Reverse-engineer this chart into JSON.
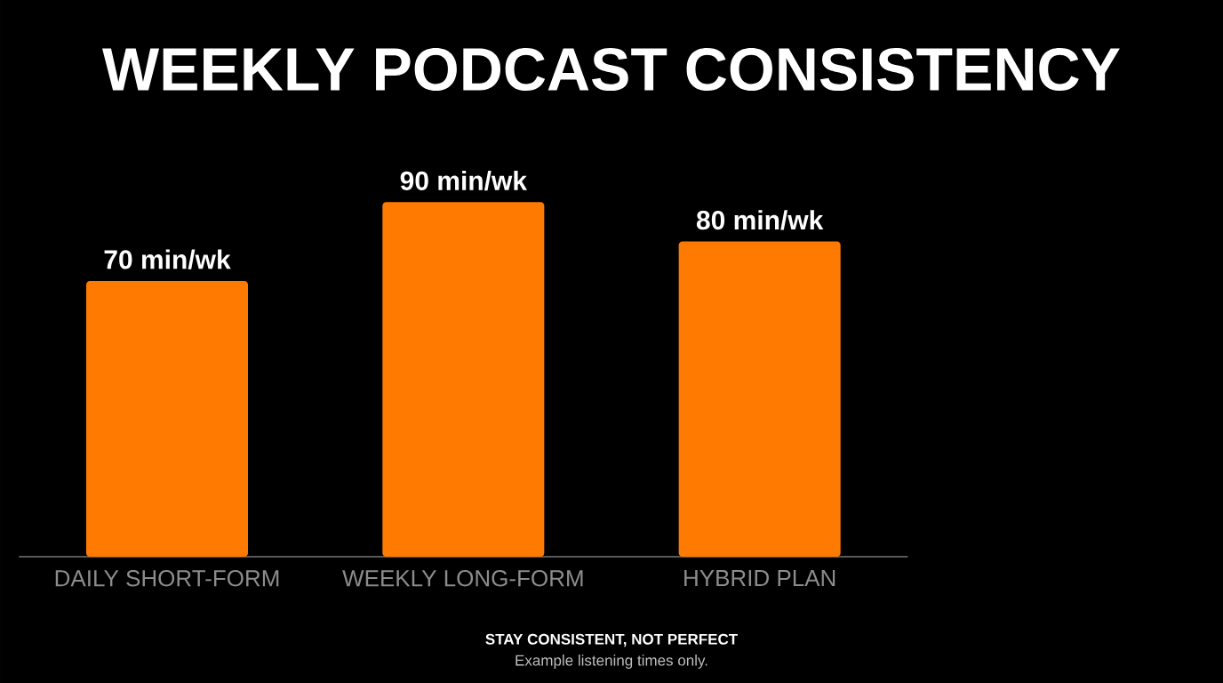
{
  "chart_data": {
    "type": "bar",
    "title": "WEEKLY PODCAST CONSISTENCY",
    "categories": [
      "DAILY SHORT-FORM",
      "WEEKLY LONG-FORM",
      "HYBRID PLAN"
    ],
    "values": [
      70,
      90,
      80
    ],
    "value_labels": [
      "70 min/wk",
      "90 min/wk",
      "80 min/wk"
    ],
    "color": "#ff7a00",
    "annotations": [
      "**STAY CONSISTENT, NOT PERFECT**",
      "Example listening times only."
    ]
  }
}
